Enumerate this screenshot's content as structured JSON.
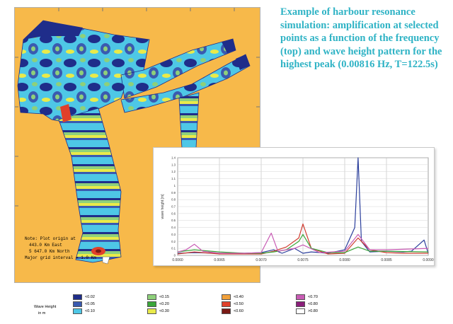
{
  "caption": "Example of harbour resonance simulation: amplification at selected points as a function of the frequency (top) and wave height pattern for the highest peak (0.00816 Hz, T=122.5s)",
  "map": {
    "note_lines": [
      "Note: Plot origin at",
      "443.0 Km East",
      "5 647.0 Km North",
      "Major grid interval = 1.0 Km"
    ],
    "land_color": "#f7b94a"
  },
  "legend": {
    "title_lines": [
      "Wave Height",
      "in m"
    ],
    "items": [
      {
        "label": "<0.02",
        "color": "#1f2d8a"
      },
      {
        "label": "<0.05",
        "color": "#3a5ab0"
      },
      {
        "label": "<0.10",
        "color": "#4ec7e6"
      },
      {
        "label": "<0.15",
        "color": "#8ed07a"
      },
      {
        "label": "<0.20",
        "color": "#3aa63a"
      },
      {
        "label": "<0.30",
        "color": "#e9ea4a"
      },
      {
        "label": "<0.40",
        "color": "#f2a13a"
      },
      {
        "label": "<0.50",
        "color": "#e0402a"
      },
      {
        "label": "<0.60",
        "color": "#7a1a14"
      },
      {
        "label": "<0.70",
        "color": "#c85cb4"
      },
      {
        "label": "<0.80",
        "color": "#8a1e7a"
      },
      {
        "label": ">0.80",
        "color": "#ffffff"
      }
    ]
  },
  "chart_data": {
    "type": "line",
    "title": "",
    "xlabel": "",
    "ylabel": "wave height [m]",
    "xlim": [
      0.006,
      0.009
    ],
    "ylim": [
      0,
      1.4
    ],
    "x_ticks": [
      "0.0060",
      "0.0065",
      "0.0070",
      "0.0075",
      "0.0080",
      "0.0085",
      "0.0090"
    ],
    "y_ticks": [
      "0",
      "0.1",
      "0.2",
      "0.3",
      "0.4",
      "0.5",
      "0.6",
      "0.7",
      "0.8",
      "0.9",
      "1",
      "1.1",
      "1.2",
      "1.3",
      "1.4"
    ],
    "grid": true,
    "series": [
      {
        "color": "#2b3f9c",
        "x": [
          0.006,
          0.0062,
          0.0065,
          0.0068,
          0.007,
          0.00715,
          0.00725,
          0.0074,
          0.0075,
          0.0076,
          0.0078,
          0.008,
          0.00812,
          0.00816,
          0.0082,
          0.0083,
          0.0085,
          0.0087,
          0.0088,
          0.00895,
          0.009
        ],
        "y": [
          0.03,
          0.04,
          0.03,
          0.03,
          0.04,
          0.08,
          0.03,
          0.1,
          0.03,
          0.05,
          0.03,
          0.08,
          0.4,
          1.4,
          0.2,
          0.05,
          0.06,
          0.05,
          0.06,
          0.22,
          0.03
        ]
      },
      {
        "color": "#d03c30",
        "x": [
          0.006,
          0.0062,
          0.0065,
          0.0068,
          0.007,
          0.00715,
          0.0073,
          0.00745,
          0.0075,
          0.0076,
          0.0078,
          0.008,
          0.00816,
          0.0083,
          0.0085,
          0.0087,
          0.009
        ],
        "y": [
          0.02,
          0.05,
          0.02,
          0.02,
          0.02,
          0.06,
          0.12,
          0.25,
          0.45,
          0.1,
          0.02,
          0.03,
          0.25,
          0.08,
          0.04,
          0.03,
          0.03
        ]
      },
      {
        "color": "#3aa63a",
        "x": [
          0.006,
          0.0062,
          0.0065,
          0.0068,
          0.007,
          0.00715,
          0.0073,
          0.00745,
          0.0075,
          0.0076,
          0.0078,
          0.008,
          0.00816,
          0.0083,
          0.0085,
          0.009
        ],
        "y": [
          0.05,
          0.08,
          0.05,
          0.03,
          0.03,
          0.05,
          0.08,
          0.2,
          0.3,
          0.1,
          0.04,
          0.04,
          0.12,
          0.06,
          0.06,
          0.05
        ]
      },
      {
        "color": "#c85cb4",
        "x": [
          0.006,
          0.0061,
          0.0062,
          0.0063,
          0.0065,
          0.0068,
          0.007,
          0.00712,
          0.0072,
          0.0074,
          0.0075,
          0.0077,
          0.008,
          0.00816,
          0.0083,
          0.0085,
          0.009
        ],
        "y": [
          0.05,
          0.08,
          0.16,
          0.06,
          0.03,
          0.03,
          0.04,
          0.32,
          0.06,
          0.1,
          0.15,
          0.04,
          0.06,
          0.3,
          0.08,
          0.08,
          0.1
        ]
      }
    ]
  }
}
